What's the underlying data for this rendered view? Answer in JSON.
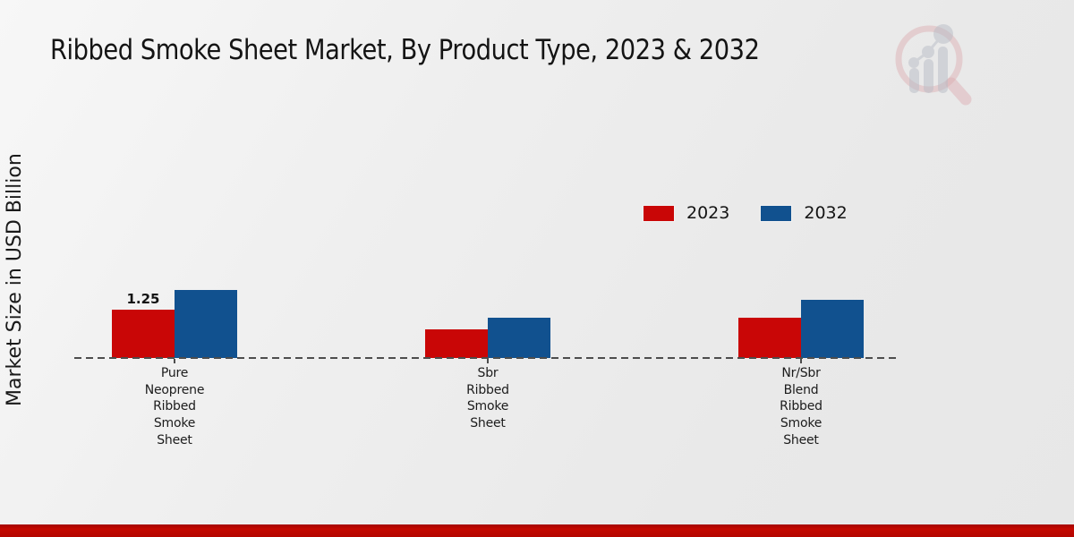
{
  "title": "Ribbed Smoke Sheet Market, By Product Type, 2023 & 2032",
  "y_axis_label": "Market Size in USD Billion",
  "legend": {
    "items": [
      {
        "label": "2023",
        "color": "#c90606"
      },
      {
        "label": "2032",
        "color": "#11518f"
      }
    ]
  },
  "footer": {
    "band_color": "#b90500"
  },
  "logo": {
    "name": "magnifier-growth-chart-watermark"
  },
  "chart_data": {
    "type": "bar",
    "title": "Ribbed Smoke Sheet Market, By Product Type, 2023 & 2032",
    "xlabel": "",
    "ylabel": "Market Size in USD Billion",
    "categories": [
      "Pure Neoprene Ribbed Smoke Sheet",
      "Sbr Ribbed Smoke Sheet",
      "Nr/Sbr Blend Ribbed Smoke Sheet"
    ],
    "category_tick_lines": [
      [
        "Pure",
        "Neoprene",
        "Ribbed",
        "Smoke",
        "Sheet"
      ],
      [
        "Sbr",
        "Ribbed",
        "Smoke",
        "Sheet"
      ],
      [
        "Nr/Sbr",
        "Blend",
        "Ribbed",
        "Smoke",
        "Sheet"
      ]
    ],
    "series": [
      {
        "name": "2023",
        "color": "#c90606",
        "values": [
          1.25,
          0.75,
          1.05
        ]
      },
      {
        "name": "2032",
        "color": "#11518f",
        "values": [
          1.75,
          1.05,
          1.5
        ]
      }
    ],
    "data_labels": [
      {
        "series_index": 0,
        "category_index": 0,
        "text": "1.25"
      }
    ],
    "ylim": [
      0,
      2
    ],
    "grid": false,
    "y_axis_ticks_visible": false,
    "baseline_style": "dashed",
    "legend_position": "upper-right-inside"
  }
}
